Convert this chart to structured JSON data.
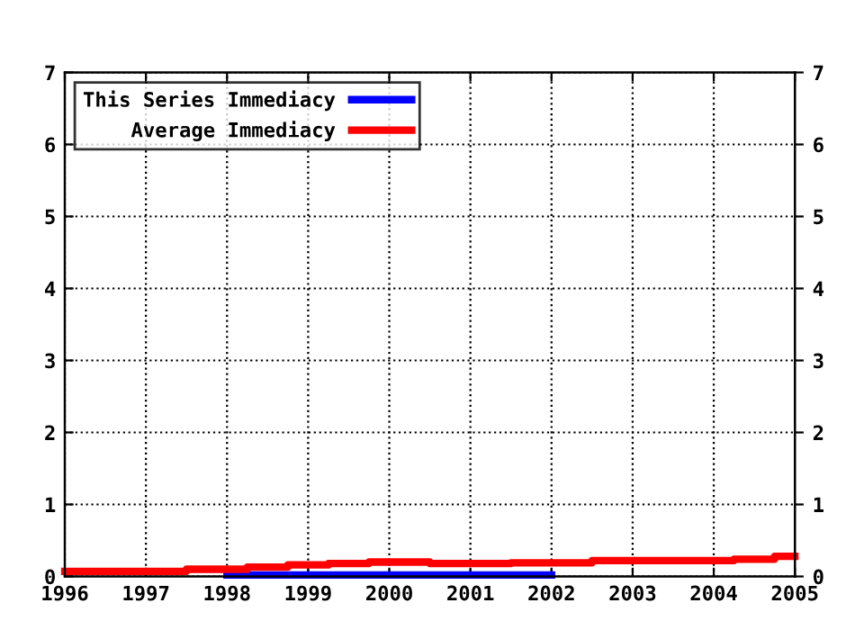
{
  "chart_data": {
    "type": "step",
    "xlim": [
      1996,
      2005
    ],
    "xticks": [
      1996,
      1997,
      1998,
      1999,
      2000,
      2001,
      2002,
      2003,
      2004,
      2005
    ],
    "ylim": [
      0,
      7
    ],
    "yticks": [
      0,
      1,
      2,
      3,
      4,
      5,
      6,
      7
    ],
    "y2lim": [
      0,
      7
    ],
    "y2ticks": [
      0,
      1,
      2,
      3,
      4,
      5,
      6,
      7
    ],
    "grid": true,
    "legend": "top left",
    "line_style": "solid",
    "series": [
      {
        "name": "This Series Immediacy",
        "color": "#0000ff",
        "x": [
          1998,
          2002
        ],
        "values": [
          0.02,
          0.02
        ]
      },
      {
        "name": "Average Immediacy",
        "color": "#ff0000",
        "x": [
          1996,
          1997.5,
          1998.25,
          1998.75,
          1999.25,
          1999.75,
          2000.5,
          2001.5,
          2002.5,
          2004.25,
          2004.75,
          2005
        ],
        "values": [
          0.07,
          0.1,
          0.13,
          0.16,
          0.18,
          0.2,
          0.18,
          0.19,
          0.22,
          0.24,
          0.28,
          0.28
        ]
      }
    ]
  }
}
